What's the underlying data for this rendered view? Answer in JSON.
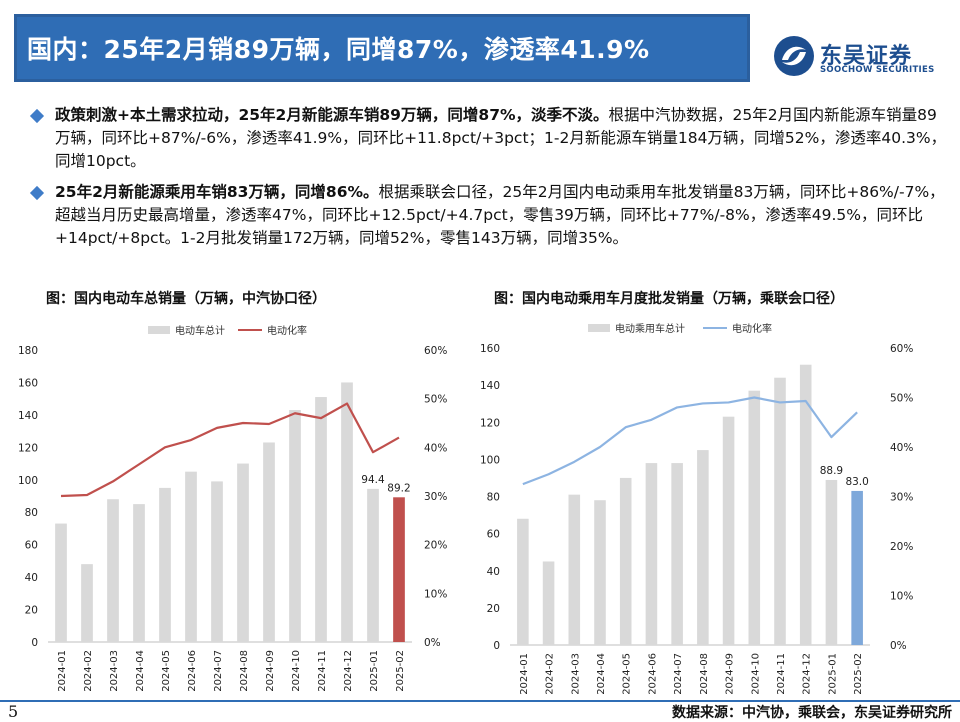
{
  "title": "国内：25年2月销89万辆，同增87%，渗透率41.9%",
  "logo": {
    "cn": "东吴证券",
    "en": "SOOCHOW SECURITIES"
  },
  "bullets": [
    {
      "bold": "政策刺激+本土需求拉动，25年2月新能源车销89万辆，同增87%，淡季不淡。",
      "text": "根据中汽协数据，25年2月国内新能源车销量89万辆，同环比+87%/-6%，渗透率41.9%，同环比+11.8pct/+3pct；1-2月新能源车销量184万辆，同增52%，渗透率40.3%，同增10pct。"
    },
    {
      "bold": "25年2月新能源乘用车销83万辆，同增86%。",
      "text": "根据乘联会口径，25年2月国内电动乘用车批发销量83万辆，同环比+86%/-7%，超越当月历史最高增量，渗透率47%，同环比+12.5pct/+4.7pct，零售39万辆，同环比+77%/-8%，渗透率49.5%，同环比+14pct/+8pct。1-2月批发销量172万辆，同增52%，零售143万辆，同增35%。"
    }
  ],
  "footer": {
    "page": "5",
    "source": "数据来源：中汽协，乘联会，东吴证券研究所"
  },
  "chart_data": [
    {
      "title": "图：国内电动车总销量（万辆，中汽协口径）",
      "type": "bar",
      "categories": [
        "2024-01",
        "2024-02",
        "2024-03",
        "2024-04",
        "2024-05",
        "2024-06",
        "2024-07",
        "2024-08",
        "2024-09",
        "2024-10",
        "2024-11",
        "2024-12",
        "2025-01",
        "2025-02"
      ],
      "series": [
        {
          "name": "电动车总计",
          "type": "bar",
          "axis": "left",
          "color": "#d9d9d9",
          "highlight_color": "#c0504d",
          "values": [
            73,
            48,
            88,
            85,
            95,
            105,
            99,
            110,
            123,
            143,
            151,
            160,
            94.4,
            89.2
          ]
        },
        {
          "name": "电动化率",
          "type": "line",
          "axis": "right",
          "color": "#c0504d",
          "values": [
            0.3,
            0.302,
            0.33,
            0.365,
            0.4,
            0.415,
            0.44,
            0.45,
            0.448,
            0.47,
            0.46,
            0.49,
            0.39,
            0.42
          ]
        }
      ],
      "data_labels": [
        {
          "index": 12,
          "text": "94.4"
        },
        {
          "index": 13,
          "text": "89.2"
        }
      ],
      "ylim": [
        0,
        180
      ],
      "yticks": [
        0,
        20,
        40,
        60,
        80,
        100,
        120,
        140,
        160,
        180
      ],
      "y2lim": [
        0,
        0.6
      ],
      "y2ticks": [
        "0%",
        "10%",
        "20%",
        "30%",
        "40%",
        "50%",
        "60%"
      ],
      "legend_position": "top"
    },
    {
      "title": "图：国内电动乘用车月度批发销量（万辆，乘联会口径）",
      "type": "bar",
      "categories": [
        "2024-01",
        "2024-02",
        "2024-03",
        "2024-04",
        "2024-05",
        "2024-06",
        "2024-07",
        "2024-08",
        "2024-09",
        "2024-10",
        "2024-11",
        "2024-12",
        "2025-01",
        "2025-02"
      ],
      "series": [
        {
          "name": "电动乘用车总计",
          "type": "bar",
          "axis": "left",
          "color": "#d9d9d9",
          "highlight_color": "#7ea8da",
          "values": [
            68,
            45,
            81,
            78,
            90,
            98,
            98,
            105,
            123,
            137,
            144,
            151,
            88.9,
            83.0
          ]
        },
        {
          "name": "电动化率",
          "type": "line",
          "axis": "right",
          "color": "#8db4e2",
          "values": [
            0.325,
            0.345,
            0.37,
            0.4,
            0.44,
            0.455,
            0.48,
            0.488,
            0.49,
            0.5,
            0.49,
            0.493,
            0.42,
            0.47
          ]
        }
      ],
      "data_labels": [
        {
          "index": 12,
          "text": "88.9"
        },
        {
          "index": 13,
          "text": "83.0"
        }
      ],
      "ylim": [
        0,
        160
      ],
      "yticks": [
        0,
        20,
        40,
        60,
        80,
        100,
        120,
        140,
        160
      ],
      "y2lim": [
        0,
        0.6
      ],
      "y2ticks": [
        "0%",
        "10%",
        "20%",
        "30%",
        "40%",
        "50%",
        "60%"
      ],
      "legend_position": "top"
    }
  ]
}
